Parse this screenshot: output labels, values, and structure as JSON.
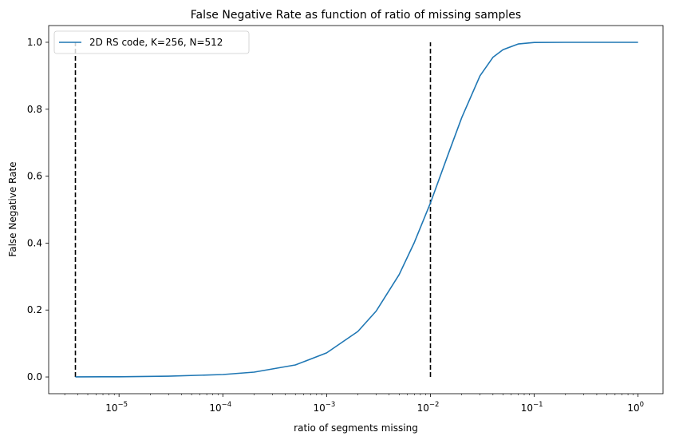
{
  "chart_data": {
    "type": "line",
    "title": "False Negative Rate as function of ratio of missing samples",
    "xlabel": "ratio of segments missing",
    "ylabel": "False Negative Rate",
    "xscale": "log",
    "xlim": [
      2.1e-06,
      1.74
    ],
    "ylim": [
      -0.05,
      1.05
    ],
    "xticks": [
      1e-05,
      0.0001,
      0.001,
      0.01,
      0.1,
      1
    ],
    "xtick_labels": [
      [
        "10",
        "−5"
      ],
      [
        "10",
        "−4"
      ],
      [
        "10",
        "−3"
      ],
      [
        "10",
        "−2"
      ],
      [
        "10",
        "−1"
      ],
      [
        "10",
        "0"
      ]
    ],
    "yticks": [
      0.0,
      0.2,
      0.4,
      0.6,
      0.8,
      1.0
    ],
    "ytick_labels": [
      "0.0",
      "0.2",
      "0.4",
      "0.6",
      "0.8",
      "1.0"
    ],
    "grid": false,
    "legend": {
      "placement": "top-left",
      "entries": [
        "2D RS code, K=256, N=512"
      ]
    },
    "series": [
      {
        "name": "2D RS code, K=256, N=512",
        "color": "#1f77b4",
        "x": [
          3.8e-06,
          1e-05,
          3e-05,
          0.0001,
          0.0002,
          0.0005,
          0.001,
          0.002,
          0.003,
          0.005,
          0.007,
          0.01,
          0.015,
          0.02,
          0.03,
          0.04,
          0.05,
          0.07,
          0.1,
          0.2,
          1
        ],
        "y": [
          0.0003,
          0.0007,
          0.0022,
          0.0073,
          0.0145,
          0.036,
          0.072,
          0.136,
          0.197,
          0.306,
          0.402,
          0.52,
          0.67,
          0.775,
          0.9,
          0.955,
          0.978,
          0.995,
          0.9995,
          1.0,
          1.0
        ]
      }
    ],
    "vlines": [
      {
        "x": 3.8e-06,
        "ymin": 0,
        "ymax": 1,
        "color": "#000000",
        "style": "dashed"
      },
      {
        "x": 0.01,
        "ymin": 0,
        "ymax": 1,
        "color": "#000000",
        "style": "dashed"
      }
    ]
  }
}
